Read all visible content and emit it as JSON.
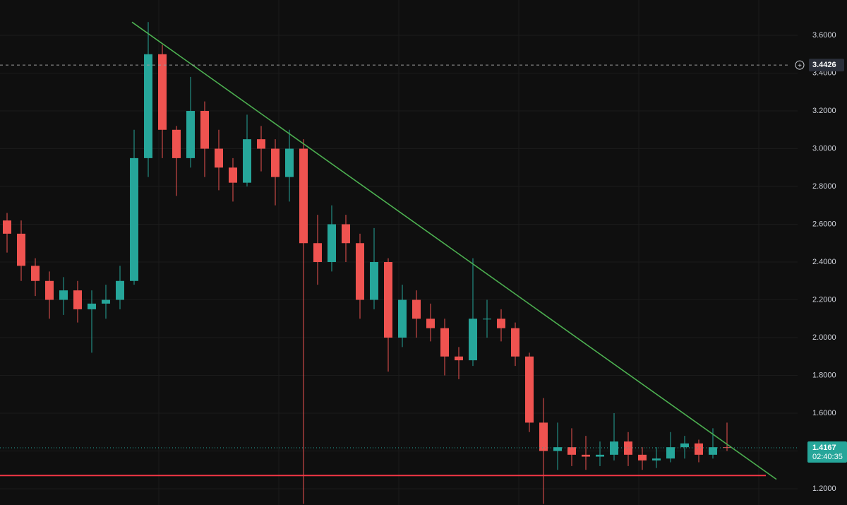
{
  "chart_data": {
    "type": "candlestick",
    "categories": [
      null,
      null,
      null,
      null,
      null,
      null,
      null,
      null,
      null,
      null,
      null,
      null,
      null,
      null,
      null,
      null,
      null,
      null,
      null,
      null,
      null,
      null,
      null,
      null,
      null,
      null,
      null,
      null,
      null,
      null,
      null,
      null,
      null,
      null,
      null,
      null,
      null,
      null,
      null,
      null,
      null,
      null,
      null,
      null,
      null,
      null,
      null,
      null,
      null,
      null,
      null,
      null
    ],
    "open": [
      2.62,
      2.55,
      2.38,
      2.3,
      2.2,
      2.25,
      2.15,
      2.18,
      2.2,
      2.3,
      2.95,
      3.5,
      3.1,
      2.95,
      3.2,
      3.0,
      2.9,
      2.82,
      3.05,
      3.0,
      2.85,
      3.0,
      2.5,
      2.4,
      2.6,
      2.5,
      2.2,
      2.4,
      2.0,
      2.2,
      2.1,
      2.05,
      1.9,
      1.88,
      2.1,
      2.1,
      2.05,
      1.9,
      1.55,
      1.4,
      1.42,
      1.38,
      1.37,
      1.38,
      1.45,
      1.38,
      1.35,
      1.36,
      1.42,
      1.44,
      1.38,
      1.42
    ],
    "high": [
      2.66,
      2.62,
      2.42,
      2.35,
      2.32,
      2.3,
      2.25,
      2.28,
      2.38,
      3.1,
      3.67,
      3.55,
      3.12,
      3.38,
      3.25,
      3.1,
      2.95,
      3.18,
      3.12,
      3.05,
      3.1,
      3.05,
      2.65,
      2.7,
      2.65,
      2.55,
      2.58,
      2.42,
      2.28,
      2.25,
      2.18,
      2.1,
      1.95,
      2.42,
      2.2,
      2.15,
      2.08,
      1.92,
      1.68,
      1.55,
      1.52,
      1.48,
      1.45,
      1.6,
      1.5,
      1.42,
      1.42,
      1.5,
      1.48,
      1.46,
      1.52,
      1.55
    ],
    "low": [
      2.45,
      2.3,
      2.22,
      2.1,
      2.12,
      2.08,
      1.92,
      2.1,
      2.15,
      2.28,
      2.85,
      2.95,
      2.75,
      2.9,
      2.85,
      2.78,
      2.72,
      2.8,
      2.88,
      2.7,
      2.72,
      1.12,
      2.28,
      2.35,
      2.4,
      2.1,
      2.15,
      1.82,
      1.95,
      2.0,
      1.98,
      1.8,
      1.78,
      1.85,
      2.0,
      1.98,
      1.85,
      1.5,
      1.12,
      1.3,
      1.32,
      1.3,
      1.32,
      1.35,
      1.32,
      1.3,
      1.31,
      1.34,
      1.36,
      1.34,
      1.36,
      1.4
    ],
    "close": [
      2.55,
      2.38,
      2.3,
      2.2,
      2.25,
      2.15,
      2.18,
      2.2,
      2.3,
      2.95,
      3.5,
      3.1,
      2.95,
      3.2,
      3.0,
      2.9,
      2.82,
      3.05,
      3.0,
      2.85,
      3.0,
      2.5,
      2.4,
      2.6,
      2.5,
      2.2,
      2.4,
      2.0,
      2.2,
      2.1,
      2.05,
      1.9,
      1.88,
      2.1,
      2.1,
      2.05,
      1.9,
      1.55,
      1.4,
      1.42,
      1.38,
      1.37,
      1.38,
      1.45,
      1.38,
      1.35,
      1.36,
      1.42,
      1.44,
      1.38,
      1.42,
      1.4167
    ],
    "up_color": "#26a69a",
    "down_color": "#ef5350",
    "ylim": [
      1.114,
      3.787
    ],
    "yticks": [
      {
        "value": 1.2,
        "label": "1.2000"
      },
      {
        "value": 1.4,
        "label": "1.4000"
      },
      {
        "value": 1.6,
        "label": "1.6000"
      },
      {
        "value": 1.8,
        "label": "1.8000"
      },
      {
        "value": 2.0,
        "label": "2.0000"
      },
      {
        "value": 2.2,
        "label": "2.2000"
      },
      {
        "value": 2.4,
        "label": "2.4000"
      },
      {
        "value": 2.6,
        "label": "2.6000"
      },
      {
        "value": 2.8,
        "label": "2.8000"
      },
      {
        "value": 3.0,
        "label": "3.0000"
      },
      {
        "value": 3.2,
        "label": "3.2000"
      },
      {
        "value": 3.4,
        "label": "3.4000"
      },
      {
        "value": 3.6,
        "label": "3.6000"
      }
    ],
    "grid": true,
    "crosshair_price": 3.4426,
    "last_price": 1.4167,
    "countdown": "02:40:35",
    "last_price_color": "#26a69a",
    "support_line": {
      "value": 1.27,
      "color": "#f23645"
    },
    "trend_line": {
      "start": 3.67,
      "end": 1.25,
      "color": "#4caf50"
    }
  }
}
